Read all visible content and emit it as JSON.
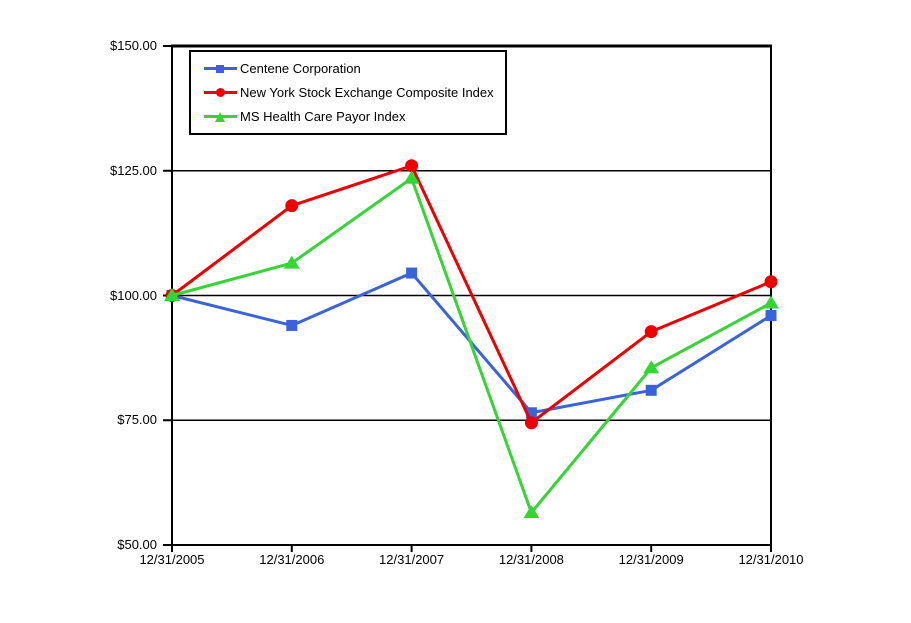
{
  "page": {
    "background": "#FFFFFF"
  },
  "chart_data": {
    "type": "line",
    "title": "",
    "xlabel": "",
    "ylabel": "",
    "ylim": [
      50,
      150
    ],
    "y_ticks": [
      150,
      125,
      100,
      75,
      50
    ],
    "y_tick_labels": [
      "$150.00",
      "$125.00",
      "$100.00",
      "$75.00",
      "$50.00"
    ],
    "categories": [
      "12/31/2005",
      "12/31/2006",
      "12/31/2007",
      "12/31/2008",
      "12/31/2009",
      "12/31/2010"
    ],
    "grid": "horizontal",
    "legend_position": "top-left-inside",
    "axis_color": "#000000",
    "series": [
      {
        "name": "Centene Corporation",
        "marker": "square",
        "color": "#3A63DB",
        "values": [
          100.0,
          94.0,
          104.5,
          76.5,
          81.0,
          96.0
        ]
      },
      {
        "name": "New York Stock Exchange Composite Index",
        "marker": "circle",
        "color": "#EE0000",
        "values": [
          100.0,
          118.0,
          126.0,
          74.5,
          92.75,
          102.75
        ]
      },
      {
        "name": "MS Health Care Payor Index",
        "marker": "triangle",
        "color": "#33D633",
        "values": [
          100.0,
          106.5,
          123.5,
          56.5,
          85.5,
          98.5
        ]
      }
    ]
  }
}
